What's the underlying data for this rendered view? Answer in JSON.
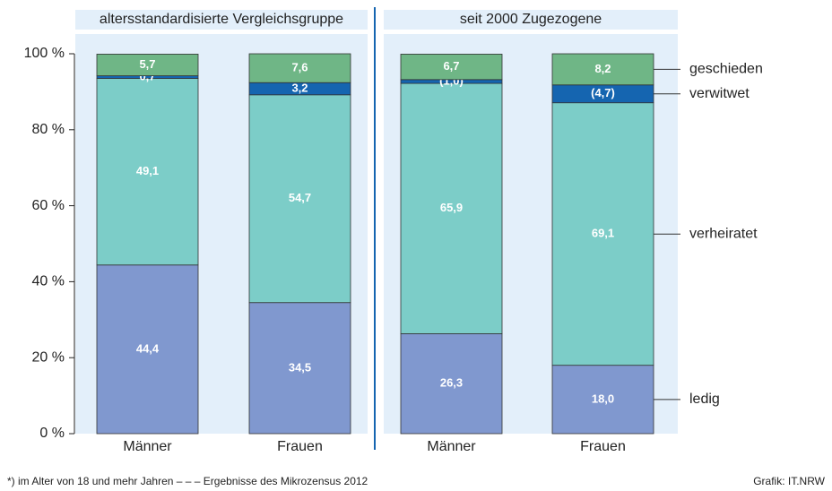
{
  "chart_data": {
    "type": "stacked_bar",
    "groups": [
      "altersstandardisierte Vergleichsgruppe",
      "seit 2000 Zugezogene"
    ],
    "categories": [
      "Männer",
      "Frauen",
      "Männer",
      "Frauen"
    ],
    "series": [
      {
        "name": "ledig",
        "color": "#8098cf",
        "values": [
          44.4,
          34.5,
          26.3,
          18.0
        ],
        "value_labels": [
          "44,4",
          "34,5",
          "26,3",
          "18,0"
        ]
      },
      {
        "name": "verheiratet",
        "color": "#7ccdc8",
        "values": [
          49.1,
          54.7,
          65.9,
          69.1
        ],
        "value_labels": [
          "49,1",
          "54,7",
          "65,9",
          "69,1"
        ]
      },
      {
        "name": "verwitwet",
        "color": "#1565b0",
        "values": [
          0.7,
          3.2,
          1.0,
          4.7
        ],
        "value_labels": [
          "0,7",
          "3,2",
          "(1,0)",
          "(4,7)"
        ]
      },
      {
        "name": "geschieden",
        "color": "#6fb686",
        "values": [
          5.7,
          7.6,
          6.7,
          8.2
        ],
        "value_labels": [
          "5,7",
          "7,6",
          "6,7",
          "8,2"
        ]
      }
    ],
    "ylim": [
      0,
      100
    ],
    "yticks": [
      {
        "value": 0,
        "label": "0 %"
      },
      {
        "value": 20,
        "label": "20 %"
      },
      {
        "value": 40,
        "label": "40 %"
      },
      {
        "value": 60,
        "label": "60 %"
      },
      {
        "value": 80,
        "label": "80 %"
      },
      {
        "value": 100,
        "label": "100 %"
      }
    ],
    "footnote": "*)  im Alter von 18 und mehr Jahren – – – Ergebnisse des Mikrozensus 2012",
    "source": "Grafik: IT.NRW"
  }
}
